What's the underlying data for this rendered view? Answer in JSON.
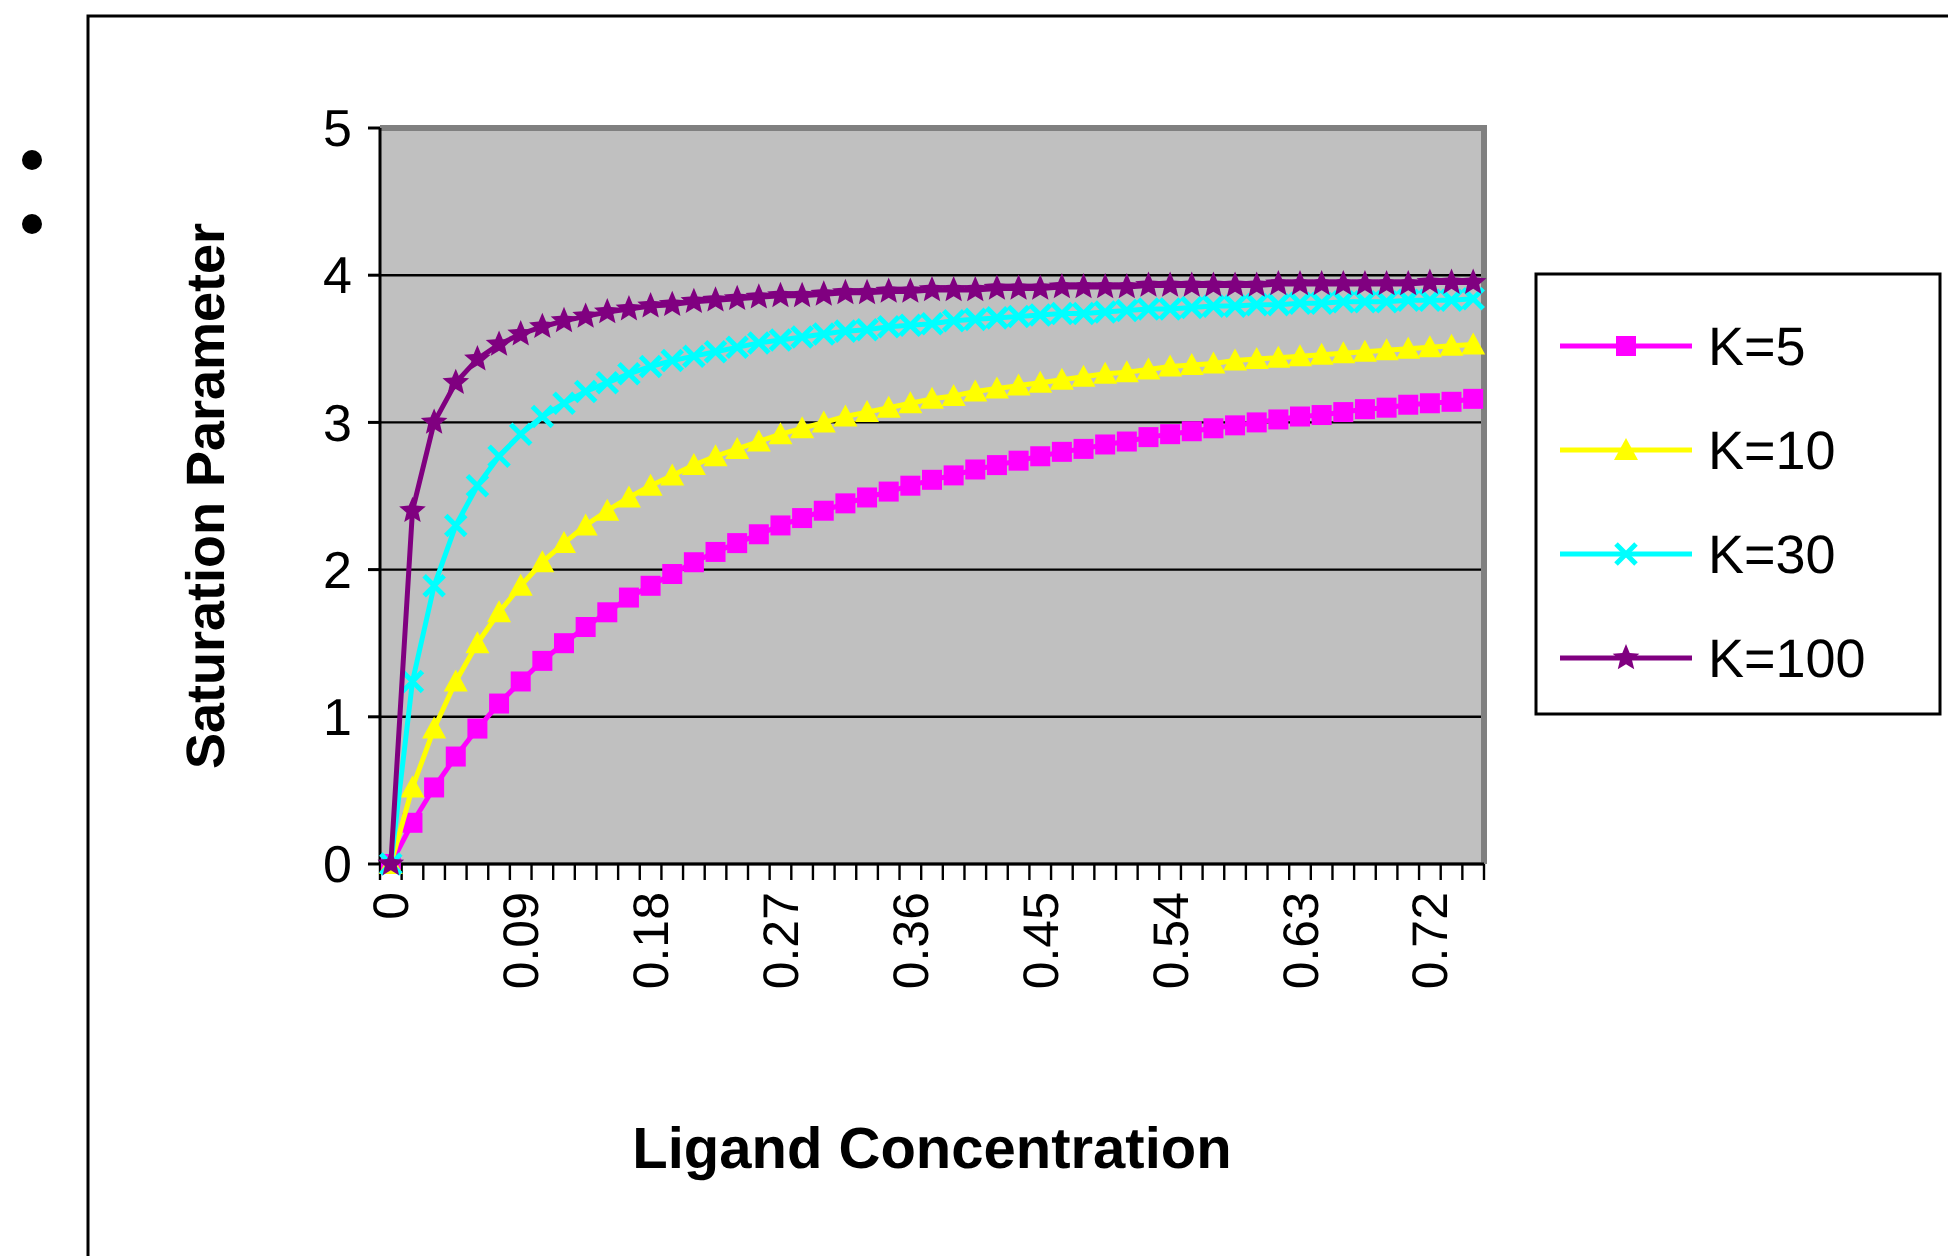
{
  "chart_data": {
    "type": "line",
    "xlabel": "Ligand Concentration",
    "ylabel": "Saturation Parameter",
    "categories": [
      "0",
      null,
      null,
      null,
      null,
      null,
      "0.09",
      null,
      null,
      null,
      null,
      null,
      "0.18",
      null,
      null,
      null,
      null,
      null,
      "0.27",
      null,
      null,
      null,
      null,
      null,
      "0.36",
      null,
      null,
      null,
      null,
      null,
      "0.45",
      null,
      null,
      null,
      null,
      null,
      "0.54",
      null,
      null,
      null,
      null,
      null,
      "0.63",
      null,
      null,
      null,
      null,
      null,
      "0.72",
      null,
      null
    ],
    "ylim": [
      0,
      5
    ],
    "yticks": [
      0,
      1,
      2,
      3,
      4,
      5
    ],
    "grid": "y",
    "legend": "right",
    "series": [
      {
        "name": "K=5",
        "color": "#ff00ff",
        "marker": "square",
        "values": [
          0,
          0.28,
          0.52,
          0.73,
          0.92,
          1.09,
          1.24,
          1.38,
          1.5,
          1.61,
          1.71,
          1.81,
          1.89,
          1.97,
          2.05,
          2.12,
          2.18,
          2.24,
          2.3,
          2.35,
          2.4,
          2.45,
          2.49,
          2.53,
          2.57,
          2.61,
          2.64,
          2.68,
          2.71,
          2.74,
          2.77,
          2.8,
          2.82,
          2.85,
          2.87,
          2.9,
          2.92,
          2.94,
          2.96,
          2.98,
          3,
          3.02,
          3.04,
          3.05,
          3.07,
          3.09,
          3.1,
          3.12,
          3.13,
          3.14,
          3.16
        ]
      },
      {
        "name": "K=10",
        "color": "#ffff00",
        "marker": "triangle",
        "values": [
          0,
          0.52,
          0.92,
          1.24,
          1.5,
          1.71,
          1.89,
          2.05,
          2.18,
          2.3,
          2.4,
          2.49,
          2.57,
          2.64,
          2.71,
          2.77,
          2.82,
          2.87,
          2.92,
          2.96,
          3,
          3.04,
          3.07,
          3.1,
          3.13,
          3.16,
          3.18,
          3.21,
          3.23,
          3.25,
          3.27,
          3.29,
          3.31,
          3.33,
          3.34,
          3.36,
          3.38,
          3.39,
          3.4,
          3.42,
          3.43,
          3.44,
          3.45,
          3.46,
          3.47,
          3.48,
          3.49,
          3.5,
          3.51,
          3.52,
          3.53
        ]
      },
      {
        "name": "K=30",
        "color": "#00ffff",
        "marker": "cross",
        "values": [
          0,
          1.24,
          1.89,
          2.3,
          2.57,
          2.77,
          2.92,
          3.04,
          3.13,
          3.21,
          3.27,
          3.33,
          3.38,
          3.42,
          3.45,
          3.48,
          3.51,
          3.54,
          3.56,
          3.58,
          3.6,
          3.62,
          3.63,
          3.65,
          3.66,
          3.67,
          3.69,
          3.7,
          3.71,
          3.72,
          3.73,
          3.74,
          3.74,
          3.75,
          3.76,
          3.77,
          3.77,
          3.78,
          3.79,
          3.79,
          3.8,
          3.8,
          3.81,
          3.81,
          3.82,
          3.82,
          3.82,
          3.83,
          3.83,
          3.83,
          3.84
        ]
      },
      {
        "name": "K=100",
        "color": "#800080",
        "marker": "star",
        "values": [
          0,
          2.4,
          3,
          3.27,
          3.43,
          3.53,
          3.6,
          3.65,
          3.69,
          3.72,
          3.75,
          3.77,
          3.79,
          3.8,
          3.82,
          3.83,
          3.84,
          3.85,
          3.86,
          3.86,
          3.87,
          3.88,
          3.88,
          3.89,
          3.89,
          3.9,
          3.9,
          3.9,
          3.91,
          3.91,
          3.91,
          3.92,
          3.92,
          3.92,
          3.92,
          3.93,
          3.93,
          3.93,
          3.93,
          3.93,
          3.93,
          3.94,
          3.94,
          3.94,
          3.94,
          3.94,
          3.94,
          3.94,
          3.95,
          3.95,
          3.95
        ]
      }
    ]
  }
}
